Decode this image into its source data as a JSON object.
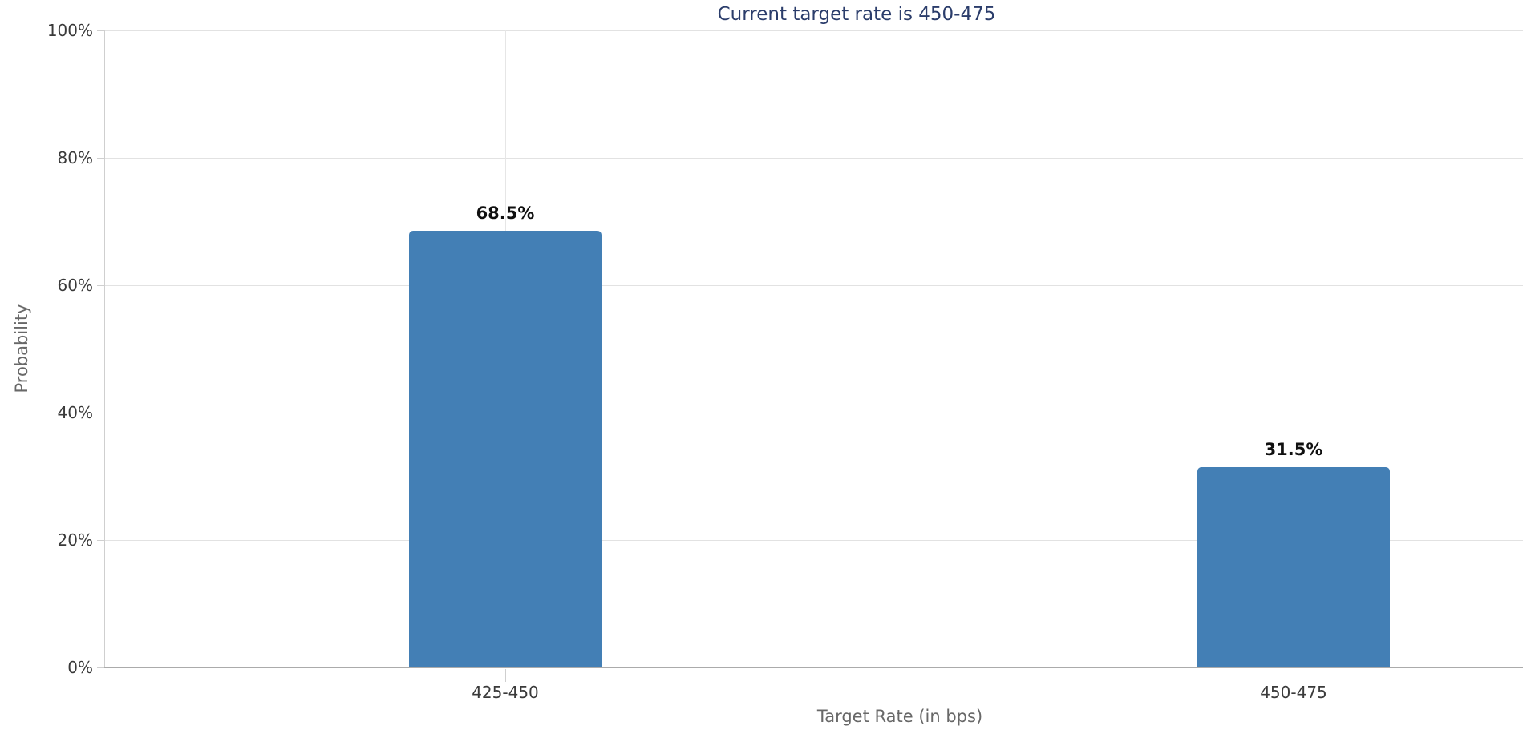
{
  "chart_data": {
    "type": "bar",
    "title": "Current target rate is 450-475",
    "xlabel": "Target Rate (in bps)",
    "ylabel": "Probability",
    "categories": [
      "425-450",
      "450-475"
    ],
    "values": [
      68.5,
      31.5
    ],
    "value_labels": [
      "68.5%",
      "31.5%"
    ],
    "yticks": [
      {
        "value": 0,
        "label": "0%"
      },
      {
        "value": 20,
        "label": "20%"
      },
      {
        "value": 40,
        "label": "40%"
      },
      {
        "value": 60,
        "label": "60%"
      },
      {
        "value": 80,
        "label": "80%"
      },
      {
        "value": 100,
        "label": "100%"
      }
    ],
    "ylim": [
      0,
      100
    ],
    "grid": true,
    "legend": "none",
    "colors": {
      "bar": "#437fb5",
      "title_text": "#2b3d6b",
      "axis_text": "#686868",
      "tick_text": "#3a3a3a",
      "gridline": "#e2e2e2"
    }
  }
}
